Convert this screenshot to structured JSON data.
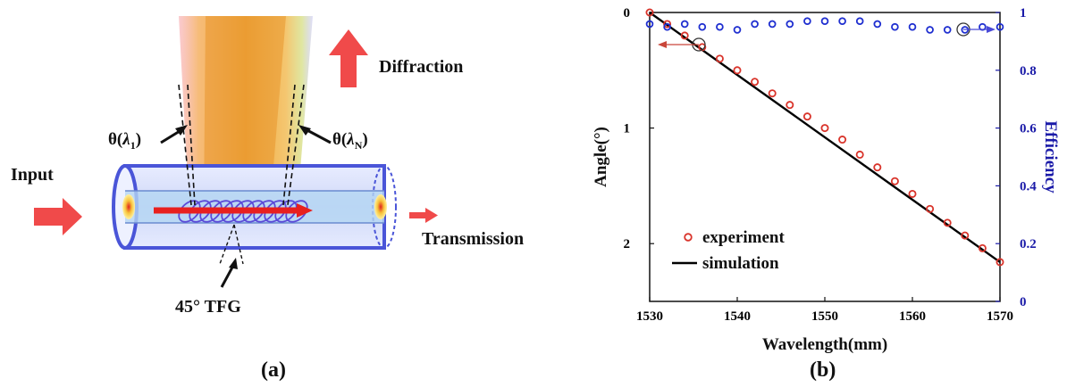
{
  "panel_a": {
    "caption": "(a)",
    "labels": {
      "diffraction": "Diffraction",
      "input": "Input",
      "transmission": "Transmission",
      "tfg": "45° TFG"
    },
    "theta_1": {
      "prefix": "θ(",
      "lambda": "λ",
      "sub": "1",
      "suffix": ")"
    },
    "theta_n": {
      "prefix": "θ(",
      "lambda": "λ",
      "sub": "N",
      "suffix": ")"
    },
    "colors": {
      "arrow_red": "#f04a4a",
      "fiber_blue": "#4a55d8",
      "beam_orange": "#f2a93b"
    }
  },
  "panel_b": {
    "caption": "(b)",
    "colors": {
      "experiment": "#d9342b",
      "simulation": "#000000",
      "efficiency": "#1f2fd0",
      "right_axis": "#1a1aa8"
    }
  },
  "chart_data": {
    "type": "scatter",
    "xlabel": "Wavelength(mm)",
    "ylabel": "Angle(°)",
    "y2label": "Efficiency",
    "xlim": [
      1530,
      1570
    ],
    "ylim": [
      0,
      2.5
    ],
    "y_inverted": true,
    "y2lim": [
      0,
      1
    ],
    "xticks": [
      "1530",
      "1540",
      "1550",
      "1560",
      "1570"
    ],
    "yticks": [
      "0",
      "1",
      "2"
    ],
    "y2ticks": [
      "0",
      "0.2",
      "0.4",
      "0.6",
      "0.8",
      "1"
    ],
    "legend_position": "bottom-left",
    "series": [
      {
        "name": "experiment",
        "axis": "left",
        "marker": "circle",
        "x": [
          1530,
          1532,
          1534,
          1536,
          1538,
          1540,
          1542,
          1544,
          1546,
          1548,
          1550,
          1552,
          1554,
          1556,
          1558,
          1560,
          1562,
          1564,
          1566,
          1568,
          1570
        ],
        "y": [
          0.0,
          0.1,
          0.2,
          0.3,
          0.4,
          0.5,
          0.6,
          0.7,
          0.8,
          0.9,
          1.0,
          1.1,
          1.23,
          1.34,
          1.46,
          1.57,
          1.7,
          1.82,
          1.93,
          2.04,
          2.16
        ]
      },
      {
        "name": "simulation",
        "axis": "left",
        "marker": "line",
        "x": [
          1530,
          1570
        ],
        "y": [
          0.0,
          2.16
        ]
      },
      {
        "axis": "right",
        "marker": "circle",
        "x": [
          1530,
          1532,
          1534,
          1536,
          1538,
          1540,
          1542,
          1544,
          1546,
          1548,
          1550,
          1552,
          1554,
          1556,
          1558,
          1560,
          1562,
          1564,
          1566,
          1568,
          1570
        ],
        "y": [
          0.96,
          0.95,
          0.96,
          0.95,
          0.95,
          0.94,
          0.96,
          0.96,
          0.96,
          0.97,
          0.97,
          0.97,
          0.97,
          0.96,
          0.95,
          0.95,
          0.94,
          0.94,
          0.94,
          0.95,
          0.95
        ]
      }
    ]
  }
}
